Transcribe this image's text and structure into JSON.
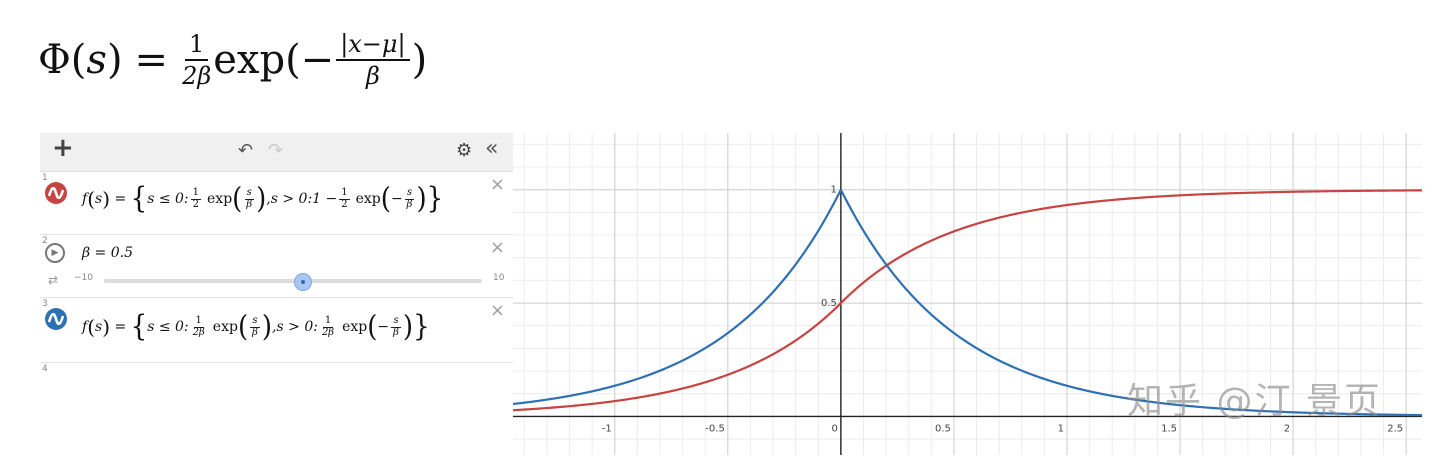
{
  "top_formula": {
    "lhs": "Φ",
    "var": "s",
    "eq": "=",
    "frac_num": "1",
    "frac_den": "2β",
    "func": "exp",
    "neg": "−",
    "arg_num": "|x−μ|",
    "arg_den": "β"
  },
  "toolbar": {
    "add": "+",
    "undo": "↶",
    "redo": "↷",
    "settings": "⚙",
    "collapse": "«"
  },
  "expressions": [
    {
      "index": "1",
      "color": "#c74440",
      "lhs": "f",
      "var": "s",
      "case1_cond": "s ≤ 0:",
      "case1_frac_n": "1",
      "case1_frac_d": "2",
      "exp": "exp",
      "case1_arg_n": "s",
      "case1_arg_d": "β",
      "case2_cond": ",s > 0:1 −",
      "case2_frac_n": "1",
      "case2_frac_d": "2",
      "case2_arg_n": "s",
      "case2_arg_d": "β"
    },
    {
      "index": "2",
      "slider_label": "β = 0.5",
      "slider_min": "−10",
      "slider_max": "10",
      "slider_value": 0.5,
      "slider_range": [
        -10,
        10
      ]
    },
    {
      "index": "3",
      "color": "#2d70b3",
      "lhs": "f",
      "var": "s",
      "case1_cond": "s ≤ 0:",
      "case1_frac_n": "1",
      "case1_frac_d": "2β",
      "exp": "exp",
      "case1_arg_n": "s",
      "case1_arg_d": "β",
      "case2_cond": ",s > 0:",
      "case2_frac_n": "1",
      "case2_frac_d": "2β",
      "case2_arg_n": "s",
      "case2_arg_d": "β"
    },
    {
      "index": "4"
    }
  ],
  "close_icon": "×",
  "chart_data": {
    "type": "line",
    "x_range": [
      -1.45,
      2.57
    ],
    "y_range": [
      -0.17,
      1.25
    ],
    "x_ticks": [
      -1,
      -0.5,
      0,
      0.5,
      1,
      1.5,
      2,
      2.5
    ],
    "x_tick_labels": [
      "-1",
      "-0.5",
      "0",
      "0.5",
      "1",
      "1.5",
      "2",
      "2.5"
    ],
    "y_ticks": [
      0.5,
      1
    ],
    "y_tick_labels": [
      "0.5",
      "1"
    ],
    "grid": true,
    "beta": 0.5,
    "series": [
      {
        "color": "#c74440",
        "function": "laplace_cdf"
      },
      {
        "color": "#2d70b3",
        "function": "laplace_pdf"
      }
    ]
  },
  "watermark": "知乎 @汀 景页"
}
